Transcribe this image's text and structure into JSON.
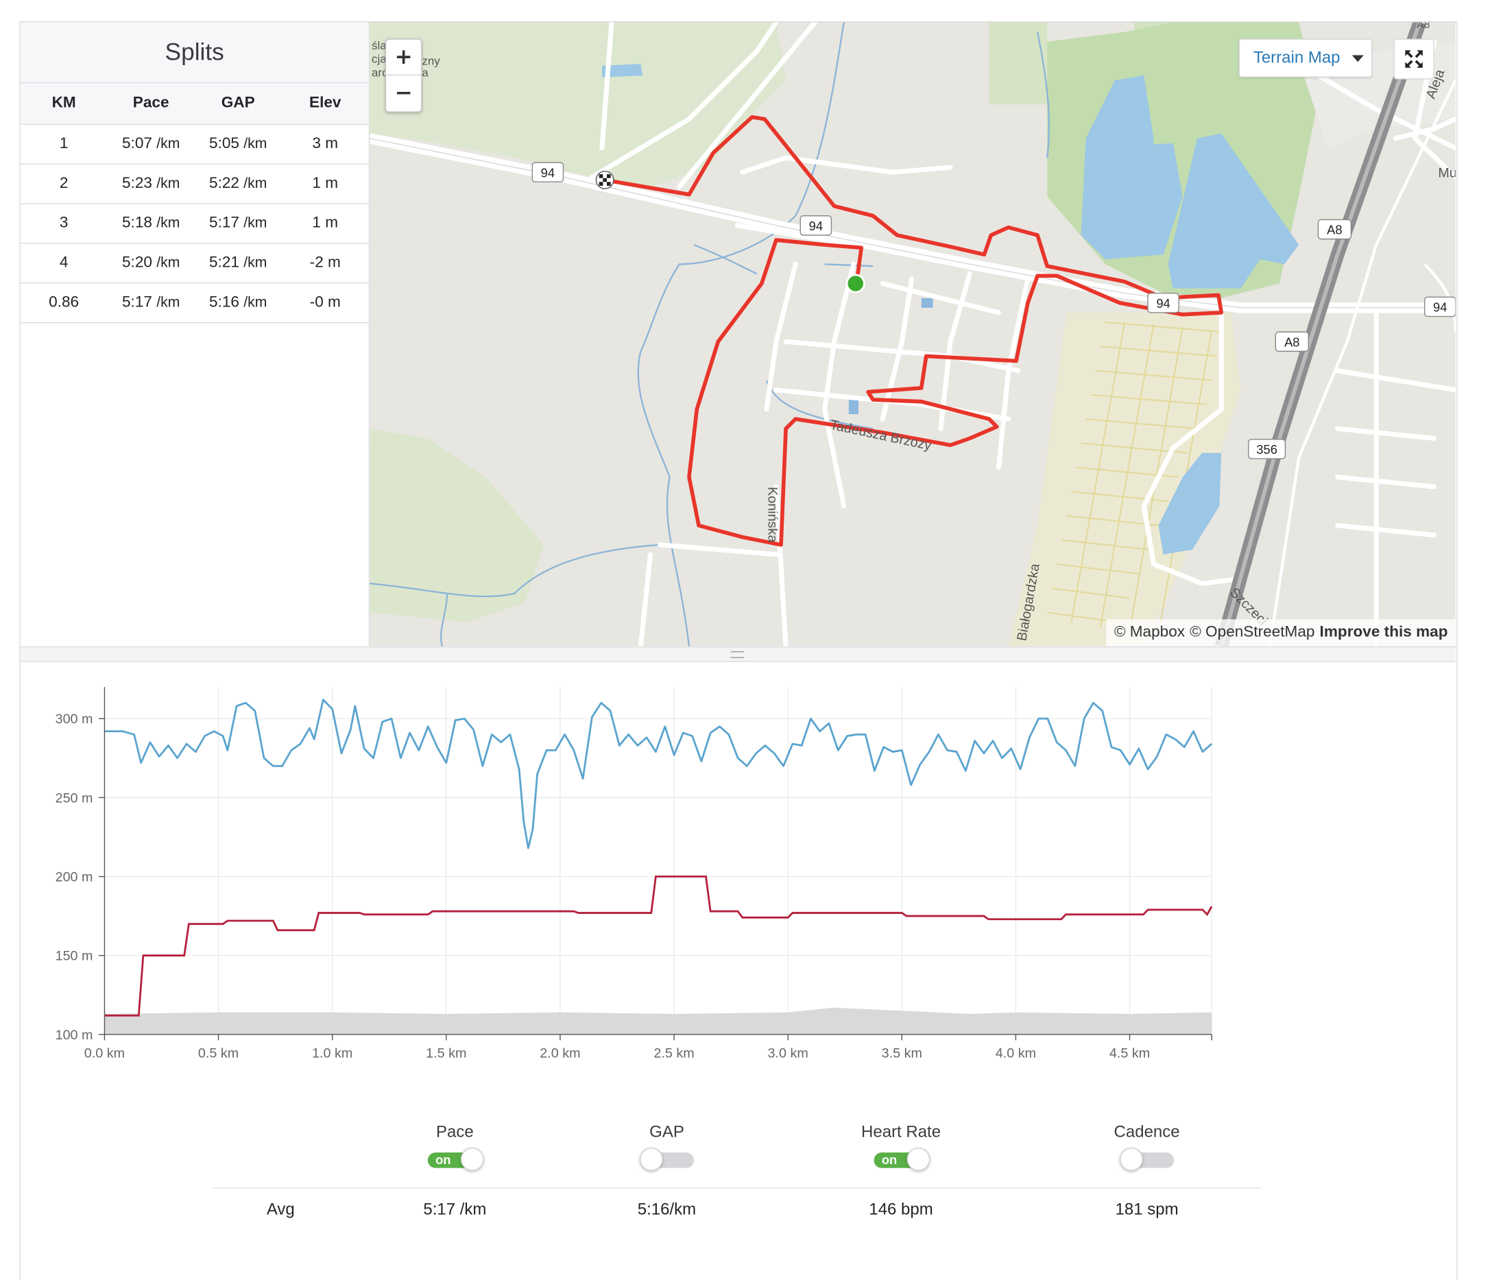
{
  "splits": {
    "title": "Splits",
    "columns": [
      "KM",
      "Pace",
      "GAP",
      "Elev"
    ],
    "rows": [
      {
        "km": "1",
        "pace": "5:07",
        "gap": "5:05",
        "elev": "3 m"
      },
      {
        "km": "2",
        "pace": "5:23",
        "gap": "5:22",
        "elev": "1 m"
      },
      {
        "km": "3",
        "pace": "5:18",
        "gap": "5:17",
        "elev": "1 m"
      },
      {
        "km": "4",
        "pace": "5:20",
        "gap": "5:21",
        "elev": "-2 m"
      },
      {
        "km": "0.86",
        "pace": "5:17",
        "gap": "5:16",
        "elev": "-0 m"
      }
    ],
    "unit": "/km"
  },
  "map": {
    "zoom_in": "+",
    "zoom_out": "−",
    "style_button": "Terrain Map",
    "attribution": {
      "mapbox": "© Mapbox",
      "osm": "© OpenStreetMap",
      "improve": "Improve this map"
    },
    "road_shields": [
      "94",
      "94",
      "94",
      "94",
      "A8",
      "A8",
      "356"
    ],
    "street_labels": [
      "Tadeusza Brzozy",
      "Konińska",
      "Białogardzka",
      "Szczeci",
      "Aleja",
      "Mu",
      "śla",
      "zny",
      "cja",
      "aro",
      "a",
      "A8"
    ],
    "route_color": "#e8352a",
    "start_color": "#3aab2e"
  },
  "chart": {
    "y_ticks": [
      "300 m",
      "250 m",
      "200 m",
      "150 m",
      "100 m"
    ],
    "x_ticks": [
      "0.0 km",
      "0.5 km",
      "1.0 km",
      "1.5 km",
      "2.0 km",
      "2.5 km",
      "3.0 km",
      "3.5 km",
      "4.0 km",
      "4.5 km"
    ],
    "pace_color": "#5ba4cf",
    "hr_color": "#b5203b",
    "elevation_color": "#d9d9d9"
  },
  "chart_data": {
    "type": "line",
    "x_unit": "km",
    "xlim": [
      0,
      4.86
    ],
    "ylim": [
      100,
      320
    ],
    "y_tick_values": [
      300,
      250,
      200,
      150,
      100
    ],
    "x_tick_values": [
      0,
      0.5,
      1.0,
      1.5,
      2.0,
      2.5,
      3.0,
      3.5,
      4.0,
      4.5
    ],
    "series": [
      {
        "key": "pace",
        "x": [
          0.0,
          0.08,
          0.13,
          0.16,
          0.2,
          0.24,
          0.28,
          0.32,
          0.36,
          0.4,
          0.44,
          0.48,
          0.52,
          0.54,
          0.58,
          0.62,
          0.66,
          0.7,
          0.74,
          0.78,
          0.82,
          0.86,
          0.9,
          0.92,
          0.96,
          1.0,
          1.04,
          1.08,
          1.1,
          1.14,
          1.18,
          1.22,
          1.26,
          1.3,
          1.34,
          1.38,
          1.42,
          1.46,
          1.5,
          1.54,
          1.58,
          1.62,
          1.66,
          1.7,
          1.74,
          1.78,
          1.82,
          1.84,
          1.86,
          1.88,
          1.9,
          1.94,
          1.98,
          2.02,
          2.06,
          2.1,
          2.14,
          2.18,
          2.22,
          2.26,
          2.3,
          2.34,
          2.38,
          2.42,
          2.46,
          2.5,
          2.54,
          2.58,
          2.62,
          2.66,
          2.7,
          2.74,
          2.78,
          2.82,
          2.86,
          2.9,
          2.94,
          2.98,
          3.02,
          3.06,
          3.1,
          3.14,
          3.18,
          3.22,
          3.26,
          3.3,
          3.34,
          3.38,
          3.42,
          3.46,
          3.5,
          3.54,
          3.58,
          3.62,
          3.66,
          3.7,
          3.74,
          3.78,
          3.82,
          3.86,
          3.9,
          3.94,
          3.98,
          4.02,
          4.06,
          4.1,
          4.14,
          4.18,
          4.22,
          4.26,
          4.3,
          4.34,
          4.38,
          4.42,
          4.46,
          4.5,
          4.54,
          4.58,
          4.62,
          4.66,
          4.7,
          4.74,
          4.78,
          4.82,
          4.86
        ],
        "values": [
          292,
          292,
          290,
          272,
          285,
          276,
          283,
          275,
          284,
          279,
          289,
          292,
          289,
          280,
          308,
          310,
          305,
          275,
          270,
          270,
          280,
          284,
          294,
          287,
          312,
          306,
          278,
          293,
          308,
          281,
          275,
          298,
          300,
          275,
          291,
          280,
          295,
          282,
          272,
          299,
          300,
          293,
          270,
          290,
          285,
          290,
          268,
          235,
          218,
          230,
          265,
          280,
          280,
          290,
          280,
          262,
          301,
          310,
          305,
          283,
          290,
          283,
          288,
          279,
          295,
          277,
          291,
          289,
          273,
          291,
          295,
          290,
          275,
          270,
          278,
          283,
          278,
          270,
          284,
          283,
          300,
          292,
          297,
          280,
          289,
          290,
          290,
          267,
          282,
          279,
          280,
          258,
          271,
          279,
          290,
          280,
          279,
          267,
          286,
          278,
          286,
          275,
          281,
          268,
          288,
          300,
          300,
          285,
          280,
          270,
          300,
          310,
          305,
          282,
          280,
          271,
          281,
          268,
          276,
          290,
          287,
          282,
          292,
          279,
          284
        ]
      },
      {
        "key": "heart_rate",
        "x": [
          0.0,
          0.15,
          0.17,
          0.35,
          0.37,
          0.52,
          0.54,
          0.74,
          0.76,
          0.92,
          0.94,
          1.12,
          1.14,
          1.42,
          1.44,
          2.06,
          2.08,
          2.4,
          2.42,
          2.64,
          2.66,
          2.78,
          2.8,
          3.0,
          3.02,
          3.5,
          3.52,
          3.86,
          3.88,
          4.2,
          4.22,
          4.56,
          4.58,
          4.82,
          4.84,
          4.86
        ],
        "values": [
          112,
          112,
          150,
          150,
          170,
          170,
          172,
          172,
          166,
          166,
          177,
          177,
          176,
          176,
          178,
          178,
          177,
          177,
          200,
          200,
          178,
          178,
          174,
          174,
          177,
          177,
          175,
          175,
          173,
          173,
          176,
          176,
          179,
          179,
          176,
          181
        ]
      },
      {
        "key": "elevation",
        "x": [
          0.0,
          0.5,
          1.0,
          1.5,
          2.0,
          2.5,
          3.0,
          3.2,
          3.5,
          3.8,
          4.0,
          4.5,
          4.86
        ],
        "values": [
          113,
          114,
          114,
          113,
          114,
          113,
          114,
          117,
          115,
          113,
          114,
          113,
          114
        ]
      }
    ]
  },
  "legend": {
    "items": [
      {
        "label": "Pace",
        "state": "on"
      },
      {
        "label": "GAP",
        "state": "off"
      },
      {
        "label": "Heart Rate",
        "state": "on"
      },
      {
        "label": "Cadence",
        "state": "off"
      }
    ],
    "toggle_on_text": "on"
  },
  "avg": {
    "label": "Avg",
    "pace": "5:17 /km",
    "gap": "5:16/km",
    "heart_rate": "146 bpm",
    "cadence": "181 spm"
  }
}
